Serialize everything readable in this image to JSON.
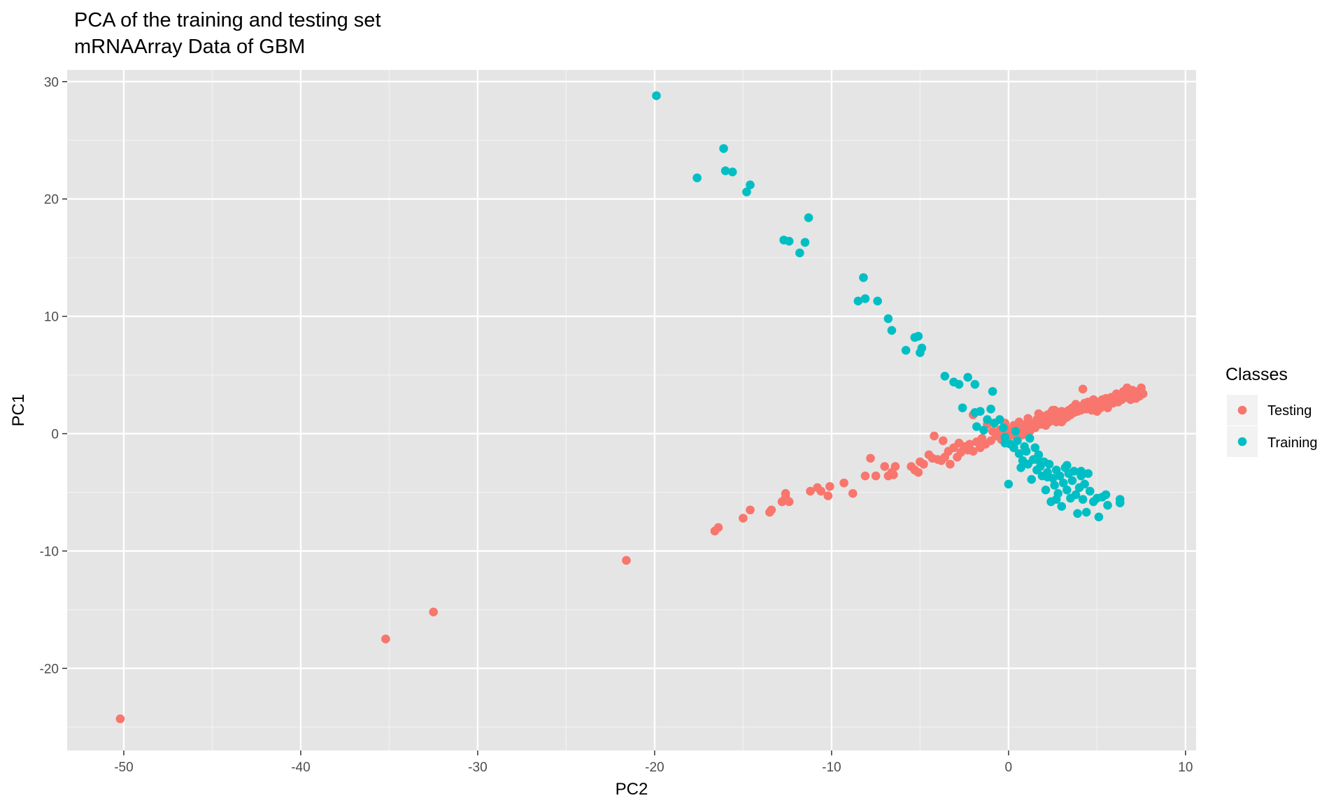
{
  "chart_data": {
    "type": "scatter",
    "title": "PCA of the training and testing set",
    "subtitle": "mRNAArray Data of GBM",
    "xlabel": "PC2",
    "ylabel": "PC1",
    "xlim": [
      -53.2,
      10.6
    ],
    "ylim": [
      -27,
      31
    ],
    "x_ticks": [
      -50,
      -40,
      -30,
      -20,
      -10,
      0,
      10
    ],
    "y_ticks": [
      -20,
      -10,
      0,
      10,
      20,
      30
    ],
    "x_tick_labels": [
      "-50",
      "-40",
      "-30",
      "-20",
      "-10",
      "0",
      "10"
    ],
    "y_tick_labels": [
      "-20",
      "-10",
      "0",
      "10",
      "20",
      "30"
    ],
    "grid": true,
    "legend": {
      "title": "Classes",
      "placement": "right"
    },
    "series": [
      {
        "name": "Testing",
        "color": "#F8766D",
        "points": [
          [
            -50.2,
            -24.3
          ],
          [
            -35.2,
            -17.5
          ],
          [
            -32.5,
            -15.2
          ],
          [
            -21.6,
            -10.8
          ],
          [
            -16.6,
            -8.3
          ],
          [
            -16.4,
            -8.0
          ],
          [
            -15.0,
            -7.2
          ],
          [
            -14.6,
            -6.5
          ],
          [
            -13.5,
            -6.7
          ],
          [
            -13.4,
            -6.5
          ],
          [
            -12.8,
            -5.8
          ],
          [
            -12.6,
            -5.4
          ],
          [
            -12.4,
            -5.8
          ],
          [
            -12.6,
            -5.1
          ],
          [
            -11.2,
            -4.9
          ],
          [
            -10.8,
            -4.6
          ],
          [
            -10.6,
            -4.9
          ],
          [
            -10.2,
            -5.3
          ],
          [
            -10.1,
            -4.5
          ],
          [
            -9.3,
            -4.2
          ],
          [
            -8.8,
            -5.1
          ],
          [
            -8.1,
            -3.6
          ],
          [
            -7.8,
            -2.1
          ],
          [
            -7.5,
            -3.6
          ],
          [
            -7.0,
            -2.8
          ],
          [
            -6.8,
            -3.6
          ],
          [
            -6.6,
            -3.3
          ],
          [
            -6.4,
            -2.8
          ],
          [
            -6.5,
            -3.5
          ],
          [
            -5.5,
            -2.8
          ],
          [
            -5.3,
            -3.1
          ],
          [
            -5.1,
            -3.3
          ],
          [
            -5.0,
            -2.4
          ],
          [
            -4.8,
            -2.6
          ],
          [
            -4.5,
            -1.8
          ],
          [
            -4.3,
            -2.1
          ],
          [
            -4.2,
            -0.2
          ],
          [
            -4.0,
            -2.2
          ],
          [
            -3.8,
            -2.3
          ],
          [
            -3.6,
            -2.0
          ],
          [
            -3.7,
            -0.6
          ],
          [
            -3.4,
            -1.5
          ],
          [
            -3.3,
            -2.6
          ],
          [
            -3.1,
            -1.2
          ],
          [
            -2.9,
            -2.0
          ],
          [
            -2.8,
            -0.8
          ],
          [
            -2.7,
            -1.6
          ],
          [
            -2.5,
            -1.1
          ],
          [
            -2.3,
            -1.4
          ],
          [
            -2.2,
            -0.9
          ],
          [
            -2.0,
            -1.5
          ],
          [
            -2.0,
            1.6
          ],
          [
            -1.8,
            -0.7
          ],
          [
            -1.6,
            -1.2
          ],
          [
            -1.5,
            -0.4
          ],
          [
            -1.3,
            -0.9
          ],
          [
            -1.2,
            0.8
          ],
          [
            -1.0,
            -0.6
          ],
          [
            -0.9,
            0.2
          ],
          [
            -0.7,
            -0.2
          ],
          [
            -0.5,
            0.3
          ],
          [
            -0.4,
            -0.5
          ],
          [
            -0.3,
            0.0
          ],
          [
            -0.2,
            0.6
          ],
          [
            0.0,
            0.2
          ],
          [
            0.0,
            -0.3
          ],
          [
            0.2,
            0.1
          ],
          [
            0.3,
            0.7
          ],
          [
            0.4,
            -0.2
          ],
          [
            0.5,
            0.3
          ],
          [
            0.6,
            1.0
          ],
          [
            0.7,
            0.2
          ],
          [
            0.8,
            -0.1
          ],
          [
            0.9,
            0.6
          ],
          [
            1.0,
            0.4
          ],
          [
            1.1,
            1.3
          ],
          [
            1.2,
            0.2
          ],
          [
            1.3,
            0.8
          ],
          [
            1.5,
            0.5
          ],
          [
            1.6,
            1.2
          ],
          [
            1.7,
            1.7
          ],
          [
            1.8,
            0.8
          ],
          [
            1.9,
            1.5
          ],
          [
            2.0,
            1.1
          ],
          [
            2.1,
            0.7
          ],
          [
            2.2,
            1.6
          ],
          [
            2.3,
            1.0
          ],
          [
            2.4,
            1.8
          ],
          [
            2.5,
            1.3
          ],
          [
            2.6,
            2.0
          ],
          [
            2.7,
            1.0
          ],
          [
            2.8,
            1.6
          ],
          [
            2.9,
            1.3
          ],
          [
            3.0,
            1.9
          ],
          [
            3.1,
            1.2
          ],
          [
            3.2,
            1.7
          ],
          [
            3.3,
            1.4
          ],
          [
            3.4,
            2.0
          ],
          [
            3.5,
            1.6
          ],
          [
            3.6,
            2.2
          ],
          [
            3.7,
            1.8
          ],
          [
            3.8,
            2.5
          ],
          [
            3.9,
            1.9
          ],
          [
            4.0,
            2.3
          ],
          [
            4.1,
            2.0
          ],
          [
            4.2,
            3.8
          ],
          [
            4.3,
            2.6
          ],
          [
            4.4,
            2.1
          ],
          [
            4.5,
            2.7
          ],
          [
            4.6,
            2.3
          ],
          [
            4.7,
            2.0
          ],
          [
            4.8,
            2.9
          ],
          [
            4.9,
            2.4
          ],
          [
            5.0,
            1.9
          ],
          [
            5.1,
            2.7
          ],
          [
            5.2,
            2.2
          ],
          [
            5.3,
            2.9
          ],
          [
            5.4,
            2.5
          ],
          [
            5.5,
            3.0
          ],
          [
            5.6,
            2.2
          ],
          [
            5.7,
            2.7
          ],
          [
            5.8,
            3.1
          ],
          [
            5.9,
            2.6
          ],
          [
            6.0,
            2.9
          ],
          [
            6.1,
            3.4
          ],
          [
            6.2,
            2.7
          ],
          [
            6.3,
            3.2
          ],
          [
            6.4,
            2.9
          ],
          [
            6.5,
            3.6
          ],
          [
            6.6,
            3.1
          ],
          [
            6.7,
            3.9
          ],
          [
            6.8,
            3.4
          ],
          [
            6.9,
            2.9
          ],
          [
            7.0,
            3.7
          ],
          [
            7.1,
            3.3
          ],
          [
            7.2,
            3.0
          ],
          [
            7.3,
            3.6
          ],
          [
            7.4,
            3.2
          ],
          [
            7.5,
            3.9
          ],
          [
            7.6,
            3.4
          ],
          [
            3.0,
            1.0
          ],
          [
            1.0,
            0.8
          ],
          [
            2.5,
            2.0
          ],
          [
            -0.2,
            0.9
          ]
        ]
      },
      {
        "name": "Training",
        "color": "#00BFC4",
        "points": [
          [
            -19.9,
            28.8
          ],
          [
            -16.1,
            24.3
          ],
          [
            -16.0,
            22.4
          ],
          [
            -15.6,
            22.3
          ],
          [
            -17.6,
            21.8
          ],
          [
            -14.6,
            21.2
          ],
          [
            -14.8,
            20.6
          ],
          [
            -11.3,
            18.4
          ],
          [
            -12.7,
            16.5
          ],
          [
            -12.4,
            16.4
          ],
          [
            -11.5,
            16.3
          ],
          [
            -11.8,
            15.4
          ],
          [
            -8.2,
            13.3
          ],
          [
            -8.5,
            11.3
          ],
          [
            -8.1,
            11.5
          ],
          [
            -7.4,
            11.3
          ],
          [
            -6.8,
            9.8
          ],
          [
            -6.6,
            8.8
          ],
          [
            -5.3,
            8.2
          ],
          [
            -5.1,
            8.3
          ],
          [
            -5.8,
            7.1
          ],
          [
            -4.9,
            7.3
          ],
          [
            -5.0,
            6.9
          ],
          [
            -3.6,
            4.9
          ],
          [
            -3.1,
            4.4
          ],
          [
            -2.8,
            4.2
          ],
          [
            -2.3,
            4.8
          ],
          [
            -1.9,
            4.2
          ],
          [
            -0.9,
            3.6
          ],
          [
            -2.6,
            2.2
          ],
          [
            -1.9,
            1.8
          ],
          [
            -1.6,
            1.9
          ],
          [
            -1.0,
            2.1
          ],
          [
            -1.2,
            1.2
          ],
          [
            -1.8,
            0.6
          ],
          [
            -1.4,
            0.3
          ],
          [
            -0.8,
            0.9
          ],
          [
            -0.5,
            1.2
          ],
          [
            -0.3,
            0.5
          ],
          [
            -0.2,
            -0.3
          ],
          [
            0.1,
            -0.9
          ],
          [
            0.3,
            -1.2
          ],
          [
            0.5,
            -0.6
          ],
          [
            0.6,
            -1.7
          ],
          [
            0.8,
            -2.3
          ],
          [
            0.7,
            -2.9
          ],
          [
            1.0,
            -1.5
          ],
          [
            1.1,
            -2.6
          ],
          [
            1.3,
            -3.9
          ],
          [
            1.4,
            -2.2
          ],
          [
            1.5,
            -1.2
          ],
          [
            1.6,
            -3.1
          ],
          [
            1.7,
            -1.8
          ],
          [
            1.8,
            -2.8
          ],
          [
            1.9,
            -3.6
          ],
          [
            2.0,
            -2.4
          ],
          [
            2.1,
            -4.8
          ],
          [
            2.2,
            -3.3
          ],
          [
            2.3,
            -2.6
          ],
          [
            2.4,
            -5.8
          ],
          [
            2.5,
            -3.8
          ],
          [
            2.6,
            -4.4
          ],
          [
            2.7,
            -3.1
          ],
          [
            2.8,
            -5.1
          ],
          [
            2.9,
            -3.6
          ],
          [
            3.0,
            -6.2
          ],
          [
            3.1,
            -4.2
          ],
          [
            3.2,
            -2.9
          ],
          [
            3.3,
            -4.8
          ],
          [
            3.4,
            -3.4
          ],
          [
            3.5,
            -5.5
          ],
          [
            3.6,
            -4.0
          ],
          [
            3.7,
            -3.2
          ],
          [
            3.8,
            -5.2
          ],
          [
            3.9,
            -6.8
          ],
          [
            4.0,
            -4.6
          ],
          [
            4.1,
            -3.6
          ],
          [
            4.2,
            -5.6
          ],
          [
            4.3,
            -4.3
          ],
          [
            4.4,
            -6.7
          ],
          [
            4.5,
            -3.4
          ],
          [
            4.6,
            -4.9
          ],
          [
            4.8,
            -5.8
          ],
          [
            5.0,
            -5.5
          ],
          [
            5.1,
            -7.1
          ],
          [
            5.3,
            -5.4
          ],
          [
            5.5,
            -5.2
          ],
          [
            5.6,
            -6.1
          ],
          [
            6.3,
            -5.6
          ],
          [
            6.3,
            -5.9
          ],
          [
            0.0,
            -4.3
          ],
          [
            -0.2,
            -0.8
          ],
          [
            0.4,
            0.2
          ],
          [
            1.2,
            -0.4
          ],
          [
            2.7,
            -5.6
          ],
          [
            3.3,
            -2.7
          ],
          [
            0.9,
            -1.1
          ],
          [
            1.6,
            -2.2
          ],
          [
            2.2,
            -3.7
          ],
          [
            4.1,
            -3.2
          ]
        ]
      }
    ]
  }
}
